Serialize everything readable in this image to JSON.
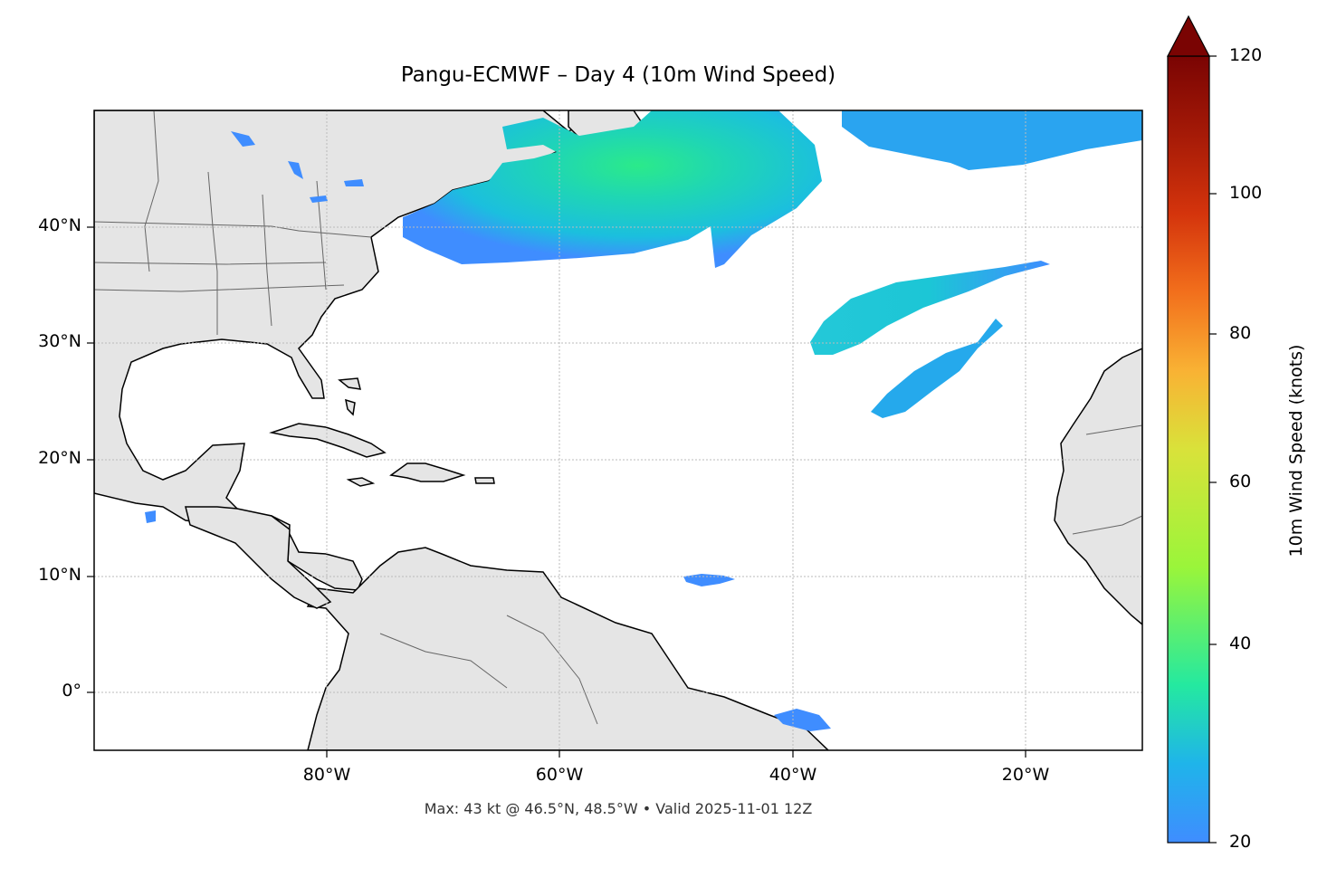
{
  "title": "Pangu-ECMWF – Day 4 (10m Wind Speed)",
  "footer": "Max: 43 kt @ 46.5°N, 48.5°W • Valid 2025-11-01 12Z",
  "map": {
    "lon_range": [
      -100,
      -10
    ],
    "lat_range": [
      -5,
      50
    ],
    "land_color": "#e5e5e5",
    "ocean_color": "#ffffff",
    "gridlines": true,
    "lat_ticks": [
      "40°N",
      "30°N",
      "20°N",
      "10°N",
      "0°"
    ],
    "lon_ticks": [
      "80°W",
      "60°W",
      "40°W",
      "20°W"
    ]
  },
  "colorbar": {
    "label": "10m Wind Speed (knots)",
    "min": 20,
    "max": 120,
    "extend": "max",
    "ticks": [
      "20",
      "40",
      "60",
      "80",
      "100",
      "120"
    ],
    "colors": [
      "#3f8dff",
      "#1ad0d5",
      "#24e9a0",
      "#9af53a",
      "#d9e23a",
      "#f9b234",
      "#f26f1c",
      "#d4340c",
      "#9c1406",
      "#7a0403"
    ]
  },
  "wind_features": [
    {
      "name": "northwest-atlantic-jet",
      "max_kt": 43
    },
    {
      "name": "northeast-atlantic-band",
      "max_kt": 26
    },
    {
      "name": "central-atlantic-band-north",
      "max_kt": 32
    },
    {
      "name": "central-atlantic-band-south",
      "max_kt": 28
    },
    {
      "name": "tropical-patch",
      "max_kt": 21
    },
    {
      "name": "equatorial-patch",
      "max_kt": 21
    },
    {
      "name": "pacific-patch",
      "max_kt": 21
    }
  ]
}
